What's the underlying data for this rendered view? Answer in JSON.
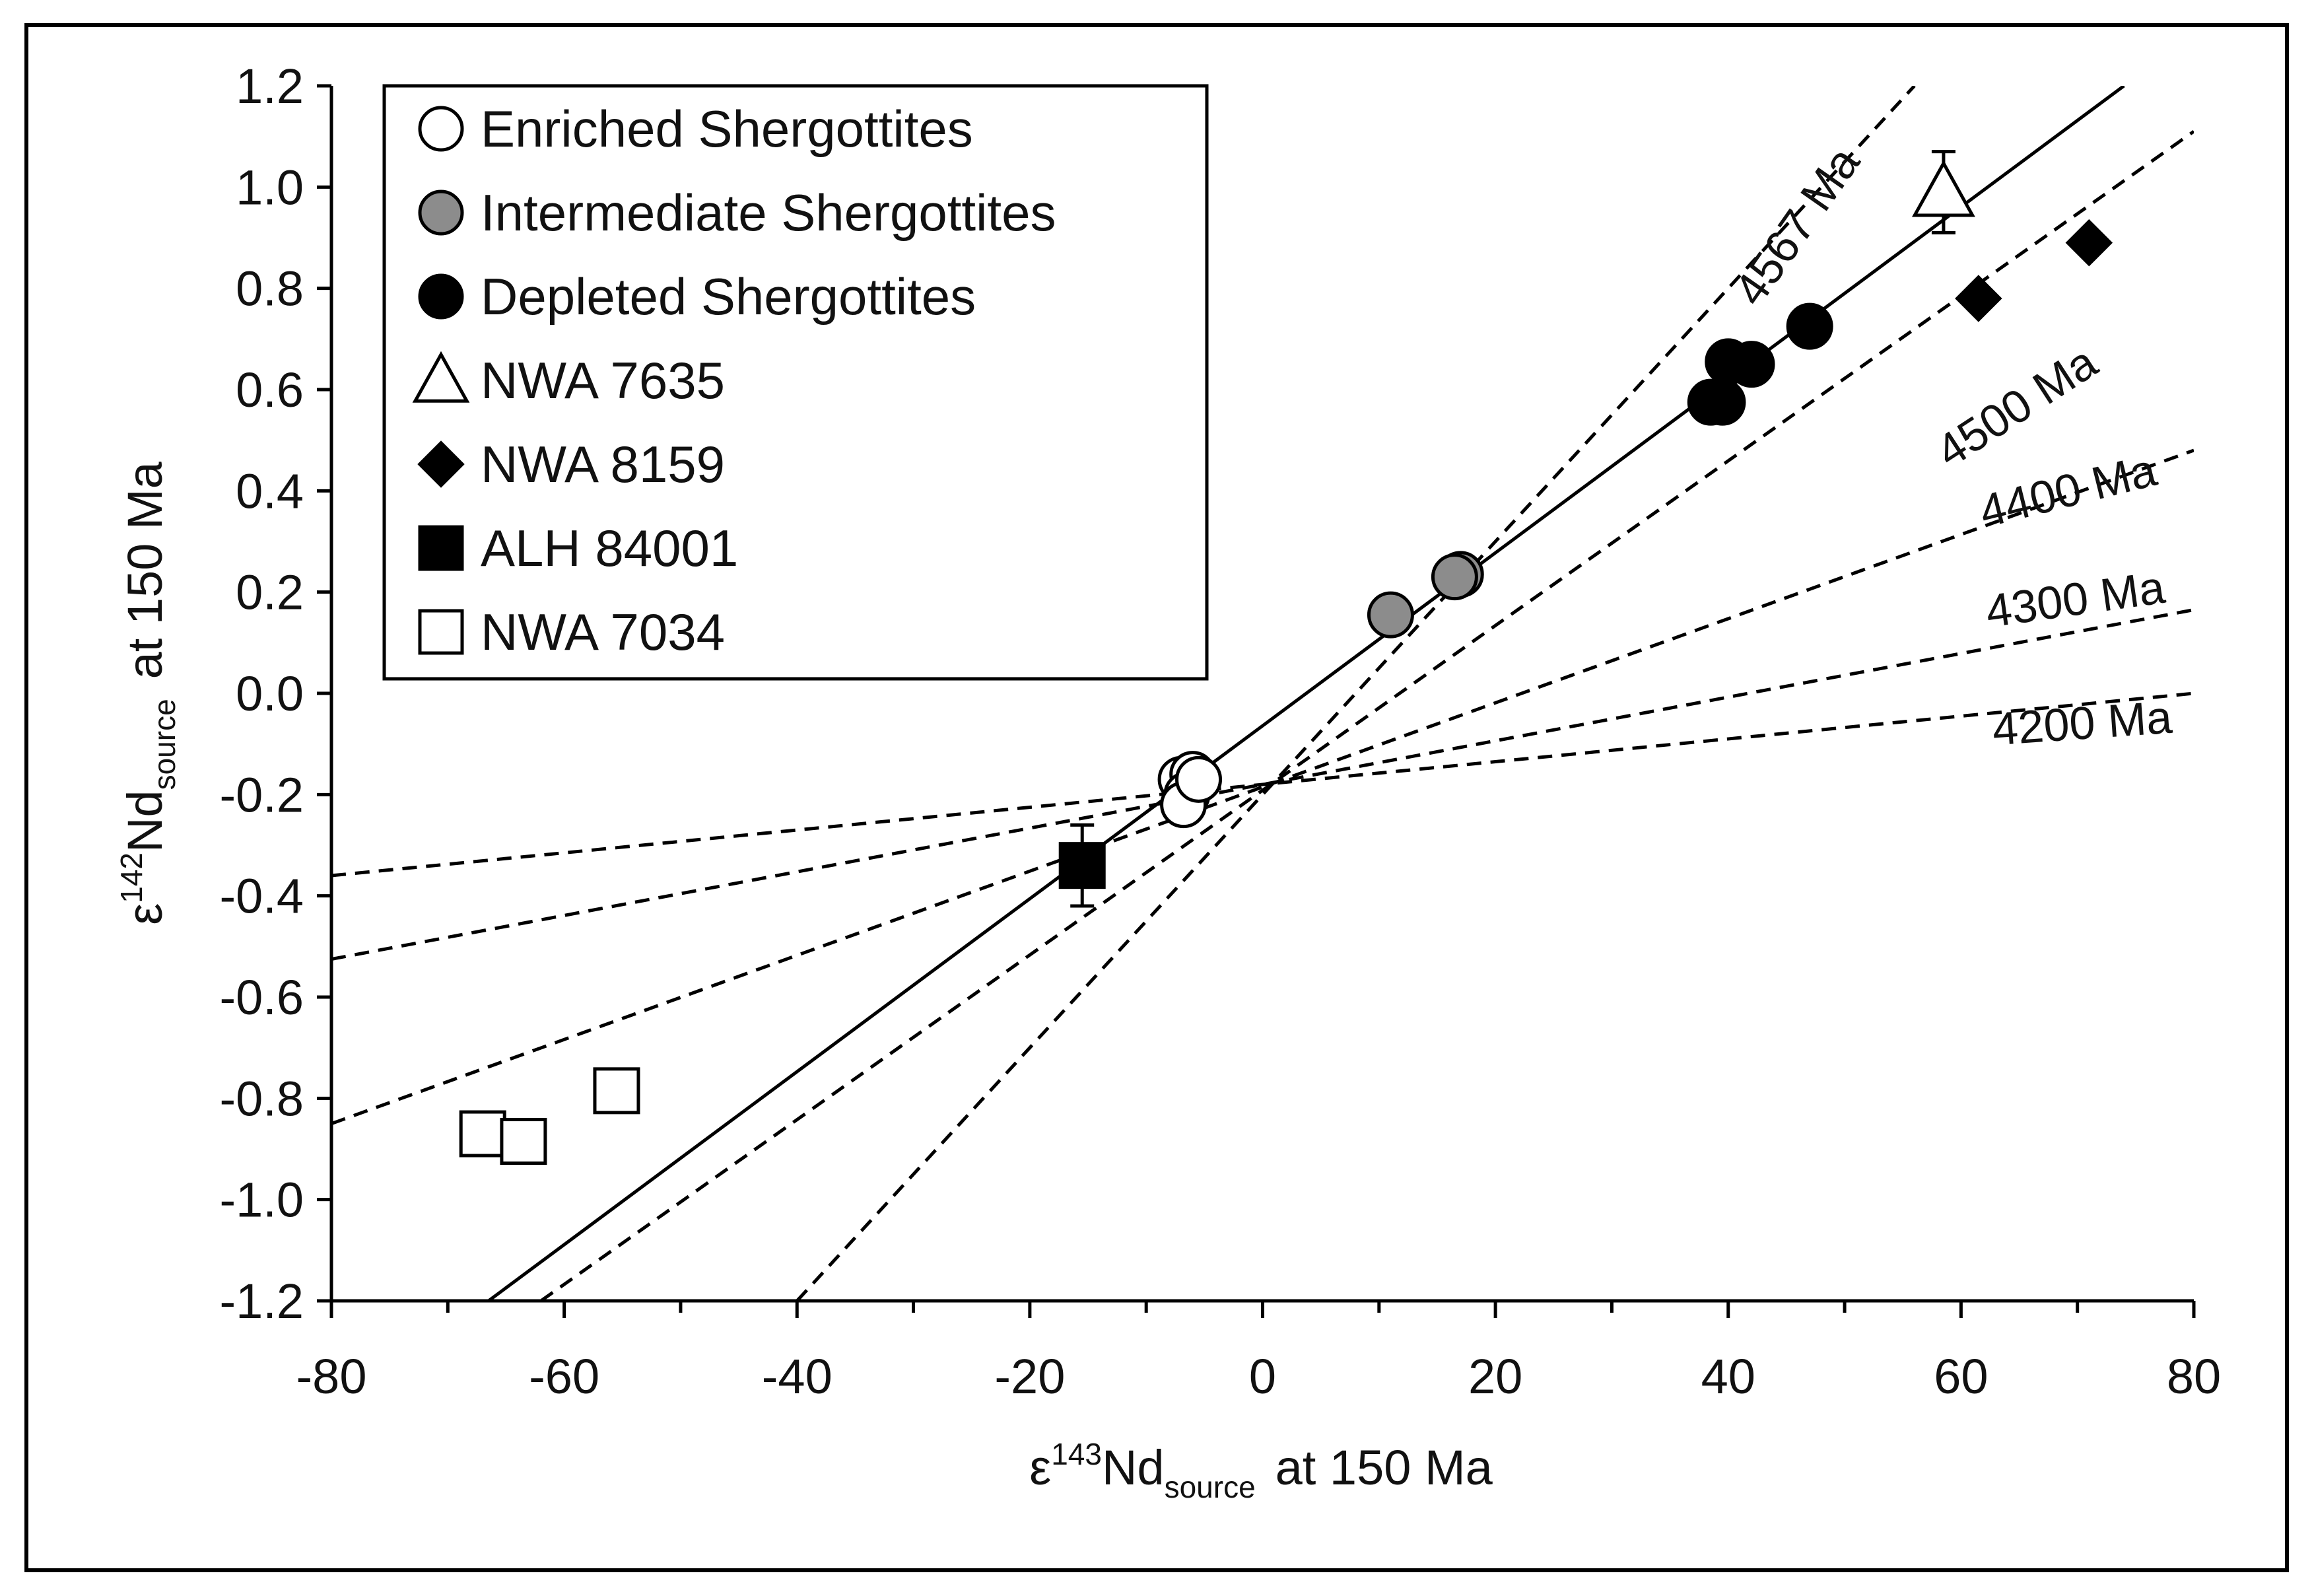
{
  "chart_data": {
    "type": "scatter",
    "xlabel": {
      "epsilon": "ε",
      "superscript": "143",
      "element": "Nd",
      "subscript": "source",
      "suffix": "at 150 Ma"
    },
    "ylabel": {
      "epsilon": "ε",
      "superscript": "142",
      "element": "Nd",
      "subscript": "source",
      "suffix": "at 150 Ma"
    },
    "xlim": [
      -80,
      80
    ],
    "ylim": [
      -1.2,
      1.2
    ],
    "x_ticks": [
      -80,
      -60,
      -40,
      -20,
      0,
      20,
      40,
      60,
      80
    ],
    "x_tick_labels": [
      "-80",
      "-60",
      "-40",
      "-20",
      "0",
      "20",
      "40",
      "60",
      "80"
    ],
    "y_ticks": [
      1.2,
      1.0,
      0.8,
      0.6,
      0.4,
      0.2,
      0.0,
      -0.2,
      -0.4,
      -0.6,
      -0.8,
      -1.0,
      -1.2
    ],
    "y_tick_labels": [
      "1.2",
      "1.0",
      "0.8",
      "0.6",
      "0.4",
      "0.2",
      "0.0",
      "-0.2",
      "-0.4",
      "-0.6",
      "-0.8",
      "-1.0",
      "-1.2"
    ],
    "legend_position": "top-left",
    "series": [
      {
        "name": "Enriched Shergottites",
        "marker": "circle",
        "fill": "#ffffff",
        "points": [
          [
            -7,
            -0.17
          ],
          [
            -6,
            -0.16
          ],
          [
            -6.5,
            -0.2
          ],
          [
            -6.8,
            -0.22
          ],
          [
            -5.5,
            -0.17
          ]
        ]
      },
      {
        "name": "Intermediate Shergottites",
        "marker": "circle",
        "fill": "#8c8c8c",
        "points": [
          [
            11,
            0.155
          ],
          [
            17,
            0.235
          ],
          [
            16.5,
            0.23
          ]
        ]
      },
      {
        "name": "Depleted Shergottites",
        "marker": "circle",
        "fill": "#000000",
        "points": [
          [
            38.5,
            0.575
          ],
          [
            39.5,
            0.575
          ],
          [
            40,
            0.655
          ],
          [
            42,
            0.65
          ],
          [
            47,
            0.725
          ]
        ]
      },
      {
        "name": "NWA 7635",
        "marker": "triangle",
        "fill": "#ffffff",
        "points": [
          [
            58.5,
            0.99
          ]
        ],
        "error": [
          0.08
        ]
      },
      {
        "name": "NWA 8159",
        "marker": "diamond",
        "fill": "#000000",
        "points": [
          [
            61.5,
            0.78
          ],
          [
            71,
            0.89
          ]
        ]
      },
      {
        "name": "ALH 84001",
        "marker": "square",
        "fill": "#000000",
        "points": [
          [
            -15.5,
            -0.34
          ]
        ],
        "error": [
          0.08
        ]
      },
      {
        "name": "NWA 7034",
        "marker": "square",
        "fill": "#ffffff",
        "points": [
          [
            -55.5,
            -0.785
          ],
          [
            -67,
            -0.87
          ],
          [
            -63.5,
            -0.885
          ]
        ]
      }
    ],
    "regression_line": {
      "style": "solid",
      "x": [
        -66.5,
        74
      ],
      "y": [
        -1.2,
        1.2
      ]
    },
    "isochrons": [
      {
        "label": "4567 Ma",
        "style": "dashed",
        "x": [
          -40,
          56
        ],
        "y": [
          -1.2,
          1.2
        ]
      },
      {
        "label": "4500 Ma",
        "style": "dashed",
        "x": [
          -62,
          80
        ],
        "y": [
          -1.2,
          1.11
        ]
      },
      {
        "label": "4400 Ma",
        "style": "dashed",
        "x": [
          -80,
          80
        ],
        "y": [
          -0.85,
          0.48
        ]
      },
      {
        "label": "4300 Ma",
        "style": "dashed",
        "x": [
          -80,
          80
        ],
        "y": [
          -0.525,
          0.165
        ]
      },
      {
        "label": "4200 Ma",
        "style": "dashed",
        "x": [
          -80,
          80
        ],
        "y": [
          -0.36,
          0.0
        ]
      }
    ]
  }
}
